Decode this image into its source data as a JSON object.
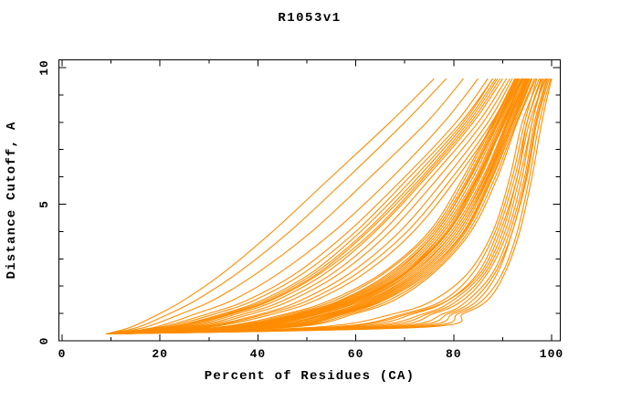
{
  "page": {
    "background_color": "#ffffff",
    "text_color": "#000000"
  },
  "chart_data": {
    "type": "line",
    "title": "R1053v1",
    "xlabel": "Percent of Residues (CA)",
    "ylabel": "Distance Cutoff, A",
    "xlim": [
      0,
      100
    ],
    "ylim": [
      0,
      10
    ],
    "x_major_ticks": [
      0,
      20,
      40,
      60,
      80,
      100
    ],
    "x_minor_tick_step": 10,
    "y_major_ticks": [
      0,
      5,
      10
    ],
    "y_minor_tick_step": 1,
    "grid": false,
    "legend_position": "none",
    "line_color": "#ff8c00",
    "frame_color": "#000000",
    "curve_y_levels": [
      0.25,
      0.5,
      1,
      1.5,
      2.5,
      4,
      6,
      8,
      9.6
    ],
    "curves_x_at_y_levels": [
      [
        10,
        70,
        80,
        85,
        89,
        92,
        95,
        97,
        99.5
      ],
      [
        9.5,
        38,
        52,
        60,
        70,
        78,
        85,
        90,
        94
      ],
      [
        9,
        22,
        33,
        41,
        51,
        61,
        72,
        82,
        88
      ],
      [
        10,
        64,
        76,
        82,
        87,
        91,
        94,
        96,
        98.5
      ],
      [
        9,
        35,
        49,
        58,
        68,
        76.5,
        83.5,
        89,
        93.5
      ],
      [
        9,
        14,
        20,
        25,
        33,
        43,
        55,
        67,
        76
      ],
      [
        9.5,
        58,
        72,
        79,
        85,
        89,
        92.5,
        95,
        98
      ],
      [
        10,
        42,
        56,
        64,
        73,
        81,
        87,
        91.5,
        95.5
      ],
      [
        9,
        25,
        36,
        44,
        54,
        64,
        74.5,
        84,
        90
      ],
      [
        10,
        52,
        68,
        76,
        83,
        88,
        91.5,
        94,
        97.5
      ],
      [
        9.5,
        32,
        46,
        55,
        65.5,
        75,
        82,
        88,
        92.5
      ],
      [
        9,
        15.5,
        22,
        27.5,
        36,
        46.5,
        58.5,
        70,
        78.5
      ],
      [
        9.5,
        60,
        74,
        80,
        86,
        90,
        93,
        95.5,
        98.8
      ],
      [
        10,
        45,
        58,
        66,
        75,
        82.5,
        88,
        92.5,
        96
      ],
      [
        9.5,
        20,
        30,
        38,
        48,
        58.5,
        70,
        80.5,
        87
      ],
      [
        10,
        66,
        78,
        83,
        88,
        91.5,
        94.5,
        96.5,
        99
      ],
      [
        9,
        37,
        51,
        60,
        70,
        78.5,
        85,
        90.5,
        94.5
      ],
      [
        9,
        27,
        39,
        47,
        57,
        67,
        77,
        86,
        91.5
      ],
      [
        9.5,
        55,
        70,
        78,
        84,
        88.5,
        92,
        94.5,
        97
      ],
      [
        9.5,
        40,
        54,
        62.5,
        72,
        80,
        86.5,
        91,
        95
      ],
      [
        9.5,
        17,
        24.5,
        31,
        40,
        51,
        63,
        74.5,
        82
      ],
      [
        10,
        72,
        81,
        86,
        90,
        93,
        95.5,
        97.5,
        99.8
      ],
      [
        10,
        34,
        48,
        57,
        67,
        76,
        83,
        88.5,
        93
      ],
      [
        9.5,
        23,
        34.5,
        42.5,
        52.5,
        62.5,
        73.5,
        83,
        89
      ],
      [
        9.5,
        62,
        75,
        81,
        86.5,
        90.5,
        93.5,
        96,
        98.2
      ],
      [
        9,
        44,
        57,
        65,
        74,
        82,
        87.5,
        92,
        95.8
      ],
      [
        9,
        28,
        41,
        49,
        59,
        69,
        78.5,
        87,
        92
      ],
      [
        10,
        56,
        71,
        79,
        85.5,
        89.5,
        93,
        95,
        97.8
      ],
      [
        9.5,
        36,
        50,
        59,
        69,
        77.5,
        84.5,
        89.5,
        94
      ],
      [
        9.5,
        19,
        27.5,
        35,
        44.5,
        55.5,
        67.5,
        78,
        85
      ],
      [
        9.5,
        68,
        79,
        84,
        88.5,
        92,
        94.8,
        96.8,
        99.2
      ],
      [
        10,
        41,
        55,
        63,
        72.5,
        80.5,
        86.8,
        91.2,
        95.2
      ],
      [
        9.5,
        21,
        31.5,
        39.5,
        49.5,
        60,
        71,
        81.5,
        88
      ],
      [
        10,
        74,
        82,
        87,
        90.5,
        93.5,
        96,
        98,
        100
      ],
      [
        9,
        33,
        47,
        56,
        66,
        75.5,
        82.5,
        88.2,
        92.8
      ],
      [
        9,
        26,
        37.5,
        45.5,
        55.5,
        65.5,
        75.5,
        85,
        90.8
      ],
      [
        9.5,
        46,
        59,
        67,
        75.5,
        83,
        88.5,
        92.8,
        96.5
      ],
      [
        10,
        38.5,
        52.5,
        61,
        70.5,
        79,
        85.5,
        90.2,
        94.2
      ],
      [
        9.5,
        24,
        35,
        43,
        53,
        63.5,
        74,
        83.5,
        89.5
      ],
      [
        9,
        43,
        56.5,
        64.5,
        73.5,
        81.5,
        87.2,
        91.8,
        95.5
      ],
      [
        9.5,
        35.5,
        49.5,
        58.5,
        68.5,
        77,
        84,
        89.2,
        93.8
      ],
      [
        9,
        29,
        42,
        50.5,
        60.5,
        70.5,
        79.8,
        87.8,
        92.6
      ],
      [
        10,
        39,
        53,
        61.5,
        71,
        79.5,
        86,
        90.8,
        94.8
      ],
      [
        9,
        47,
        60,
        68,
        76,
        83.5,
        89,
        93,
        96.8
      ],
      [
        9.5,
        22.5,
        33.8,
        41.8,
        51.8,
        62,
        72.8,
        82.5,
        88.6
      ],
      [
        9.5,
        42.5,
        55.5,
        63.5,
        73,
        81,
        87,
        91.5,
        95.3
      ],
      [
        10,
        36.5,
        50.5,
        59.5,
        69.5,
        78,
        84.8,
        89.8,
        94.3
      ],
      [
        9,
        30,
        43.5,
        52,
        62,
        71.8,
        80.8,
        88.4,
        93.1
      ],
      [
        9,
        40.5,
        54.5,
        62,
        71.5,
        80,
        86.3,
        91,
        94.9
      ],
      [
        9.5,
        34.5,
        48.5,
        57.5,
        67.5,
        76.5,
        83.3,
        88.8,
        93.3
      ],
      [
        10,
        44.5,
        57.5,
        65.5,
        74.5,
        82.2,
        87.8,
        92.2,
        95.9
      ],
      [
        9,
        37.5,
        51.5,
        60.5,
        70.2,
        78.8,
        85.2,
        90.3,
        94.6
      ]
    ]
  }
}
